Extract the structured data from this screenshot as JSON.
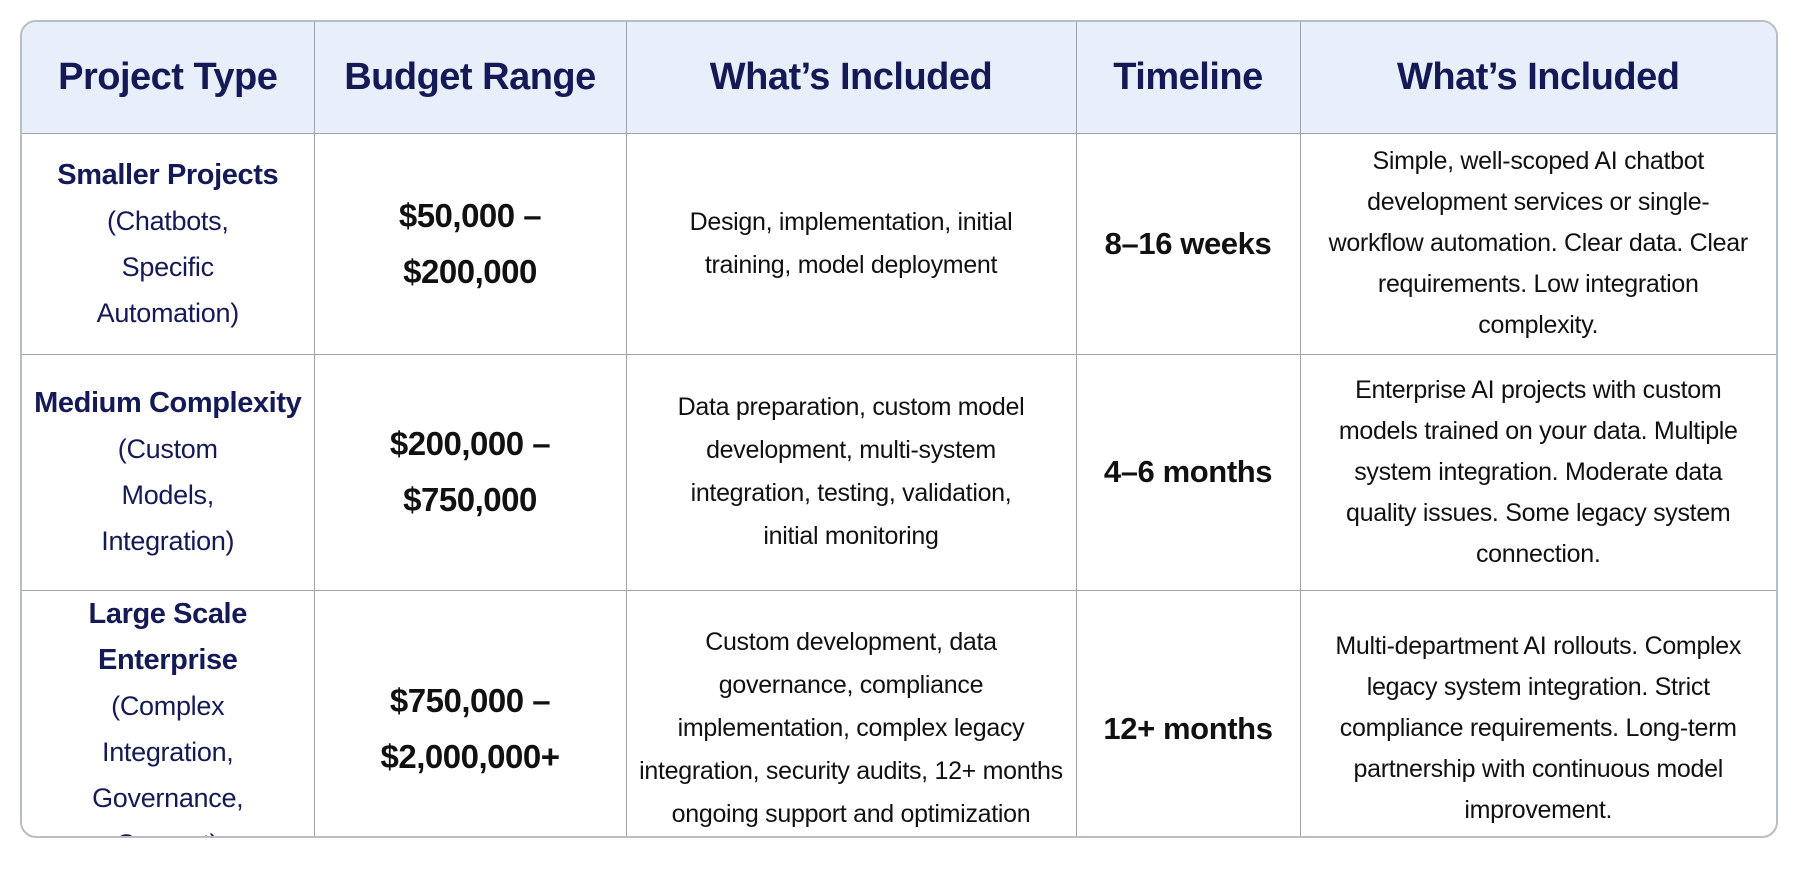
{
  "headers": [
    "Project Type",
    "Budget Range",
    "What’s Included",
    "Timeline",
    "What’s Included"
  ],
  "rows": [
    {
      "project_type": "Smaller Projects",
      "project_sub": "(Chatbots, Specific Automation)",
      "budget_line1": "$50,000 –",
      "budget_line2": "$200,000",
      "included": "Design, implementation, initial training, model deployment",
      "timeline": "8–16 weeks",
      "description": "Simple, well-scoped AI chatbot development services or single-workflow automation. Clear data. Clear requirements. Low integration complexity."
    },
    {
      "project_type": "Medium Complexity",
      "project_sub": "(Custom Models, Integration)",
      "budget_line1": "$200,000 –",
      "budget_line2": "$750,000",
      "included": "Data preparation, custom model development, multi-system integration, testing, validation, initial monitoring",
      "timeline": "4–6 months",
      "description": "Enterprise AI projects with custom models trained on your data. Multiple system integration. Moderate data quality issues. Some legacy system connection."
    },
    {
      "project_type": "Large Scale Enterprise",
      "project_sub": "(Complex Integration, Governance, Support)",
      "budget_line1": "$750,000 –",
      "budget_line2": "$2,000,000+",
      "included": "Custom development, data governance, compliance implementation, complex legacy integration, security audits, 12+ months ongoing support and optimization",
      "timeline": "12+ months",
      "description": "Multi-department AI rollouts. Complex legacy system integration. Strict compliance requirements. Long-term partnership with continuous model improvement."
    }
  ],
  "colors": {
    "header_background": "#e9eefb",
    "header_text": "#141a55",
    "project_type_text": "#141a55",
    "body_text": "#111111",
    "border": "#9ea3ad"
  }
}
